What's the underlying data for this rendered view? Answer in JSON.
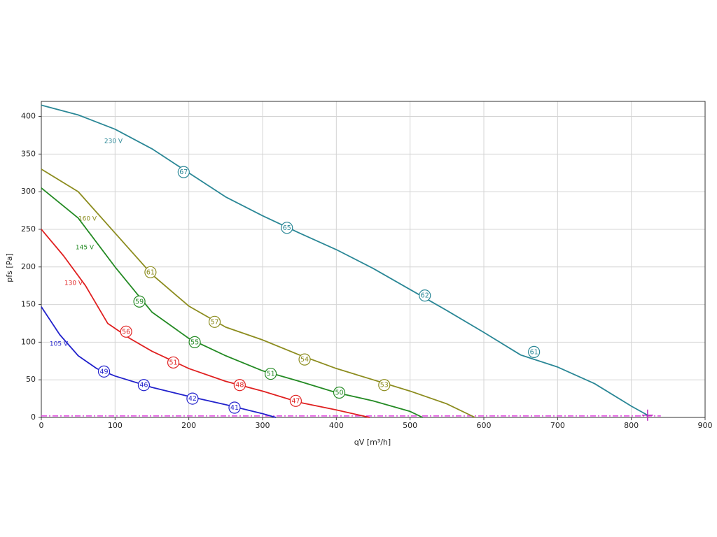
{
  "chart_data": {
    "type": "line",
    "x_label": "qV [m³/h]",
    "y_label": "pfs [Pa]",
    "xlim": [
      0,
      900
    ],
    "ylim": [
      0,
      420
    ],
    "xticks": [
      0,
      100,
      200,
      300,
      400,
      500,
      600,
      700,
      800,
      900
    ],
    "yticks": [
      0,
      50,
      100,
      150,
      200,
      250,
      300,
      350,
      400
    ],
    "grid": true,
    "series": [
      {
        "name": "230 V",
        "color": "#2a8796",
        "x": [
          0,
          50,
          100,
          150,
          200,
          250,
          300,
          350,
          400,
          450,
          500,
          550,
          600,
          650,
          700,
          750,
          800,
          822
        ],
        "values": [
          415,
          402,
          383,
          357,
          325,
          293,
          268,
          245,
          223,
          198,
          170,
          142,
          113,
          83,
          67,
          45,
          15,
          3
        ],
        "markers": {
          "x": [
            193,
            333,
            520,
            668
          ],
          "values": [
            326,
            252,
            162,
            87
          ],
          "labels": [
            67,
            65,
            62,
            61
          ]
        }
      },
      {
        "name": "160 V",
        "color": "#8c8c1e",
        "x": [
          0,
          50,
          100,
          150,
          200,
          250,
          300,
          350,
          400,
          450,
          500,
          550,
          588
        ],
        "values": [
          330,
          300,
          245,
          190,
          148,
          120,
          103,
          83,
          65,
          50,
          35,
          18,
          0
        ],
        "markers": {
          "x": [
            148,
            235,
            357,
            465
          ],
          "values": [
            193,
            127,
            77,
            43
          ],
          "labels": [
            61,
            57,
            54,
            53
          ]
        }
      },
      {
        "name": "145 V",
        "color": "#238a23",
        "x": [
          0,
          50,
          100,
          150,
          200,
          250,
          300,
          350,
          400,
          450,
          500,
          517
        ],
        "values": [
          305,
          265,
          200,
          140,
          105,
          82,
          62,
          48,
          33,
          22,
          8,
          0
        ],
        "markers": {
          "x": [
            133,
            208,
            311,
            404
          ],
          "values": [
            154,
            100,
            58,
            33
          ],
          "labels": [
            59,
            55,
            51,
            50
          ]
        }
      },
      {
        "name": "130 V",
        "color": "#e02020",
        "x": [
          0,
          30,
          60,
          90,
          120,
          150,
          200,
          250,
          300,
          350,
          400,
          445
        ],
        "values": [
          250,
          215,
          175,
          125,
          105,
          88,
          65,
          48,
          35,
          20,
          10,
          0
        ],
        "markers": {
          "x": [
            115,
            179,
            269,
            345
          ],
          "values": [
            114,
            73,
            43,
            22
          ],
          "labels": [
            56,
            51,
            48,
            47
          ]
        }
      },
      {
        "name": "105 V",
        "color": "#2222cc",
        "x": [
          0,
          25,
          50,
          75,
          100,
          150,
          200,
          250,
          300,
          318
        ],
        "values": [
          147,
          110,
          82,
          65,
          55,
          40,
          28,
          17,
          5,
          0
        ],
        "markers": {
          "x": [
            85,
            139,
            205,
            262
          ],
          "values": [
            61,
            43,
            25,
            13
          ],
          "labels": [
            49,
            46,
            42,
            41
          ]
        }
      }
    ],
    "reference_line": {
      "color": "#e040e0",
      "x": [
        0,
        840
      ],
      "values": [
        2,
        2
      ]
    },
    "operating_point": {
      "x": 822,
      "y": 3,
      "color": "#c030c0"
    }
  }
}
